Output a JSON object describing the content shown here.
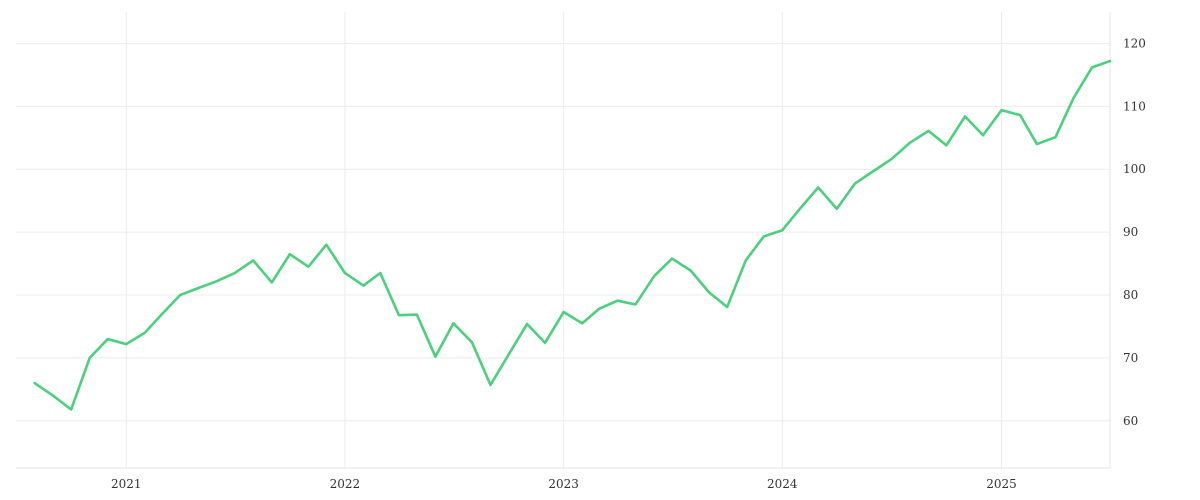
{
  "chart_data": {
    "type": "line",
    "title": "",
    "xlabel": "",
    "ylabel": "",
    "x_ticks": [
      "2021",
      "2022",
      "2023",
      "2024",
      "2025"
    ],
    "y_ticks": [
      60,
      70,
      80,
      90,
      100,
      110,
      120
    ],
    "xlim": [
      "2020-07-01",
      "2025-07-01"
    ],
    "ylim": [
      52.5,
      125
    ],
    "grid": true,
    "y_axis_position": "right",
    "legend": "none",
    "series": [
      {
        "color": "#4cd07d",
        "x": [
          "2020-08-01",
          "2020-09-01",
          "2020-10-01",
          "2020-11-01",
          "2020-12-01",
          "2021-01-01",
          "2021-02-01",
          "2021-03-01",
          "2021-04-01",
          "2021-05-01",
          "2021-06-01",
          "2021-07-01",
          "2021-08-01",
          "2021-09-01",
          "2021-10-01",
          "2021-11-01",
          "2021-12-01",
          "2022-01-01",
          "2022-02-01",
          "2022-03-01",
          "2022-04-01",
          "2022-05-01",
          "2022-06-01",
          "2022-07-01",
          "2022-08-01",
          "2022-09-01",
          "2022-10-01",
          "2022-11-01",
          "2022-12-01",
          "2023-01-01",
          "2023-02-01",
          "2023-03-01",
          "2023-04-01",
          "2023-05-01",
          "2023-06-01",
          "2023-07-01",
          "2023-08-01",
          "2023-09-01",
          "2023-10-01",
          "2023-11-01",
          "2023-12-01",
          "2024-01-01",
          "2024-02-01",
          "2024-03-01",
          "2024-04-01",
          "2024-05-01",
          "2024-06-01",
          "2024-07-01",
          "2024-08-01",
          "2024-09-01",
          "2024-10-01",
          "2024-11-01",
          "2024-12-01",
          "2025-01-01",
          "2025-02-01",
          "2025-03-01",
          "2025-04-01",
          "2025-05-01",
          "2025-06-01",
          "2025-07-01"
        ],
        "y": [
          66.0,
          64.0,
          61.8,
          70.0,
          73.0,
          72.2,
          74.0,
          76.9,
          80.0,
          81.1,
          82.2,
          83.5,
          85.5,
          82.0,
          86.5,
          84.5,
          88.0,
          83.5,
          81.5,
          83.5,
          76.8,
          76.9,
          70.2,
          75.5,
          72.5,
          65.7,
          70.5,
          75.4,
          72.4,
          77.3,
          75.5,
          77.8,
          79.1,
          78.5,
          83.0,
          85.8,
          83.9,
          80.4,
          78.1,
          85.5,
          89.3,
          90.3,
          93.9,
          97.1,
          93.7,
          97.7,
          99.7,
          101.6,
          104.2,
          106.1,
          103.8,
          108.4,
          105.4,
          109.4,
          108.6,
          104.0,
          105.1,
          111.3,
          116.2,
          117.2
        ]
      }
    ]
  }
}
